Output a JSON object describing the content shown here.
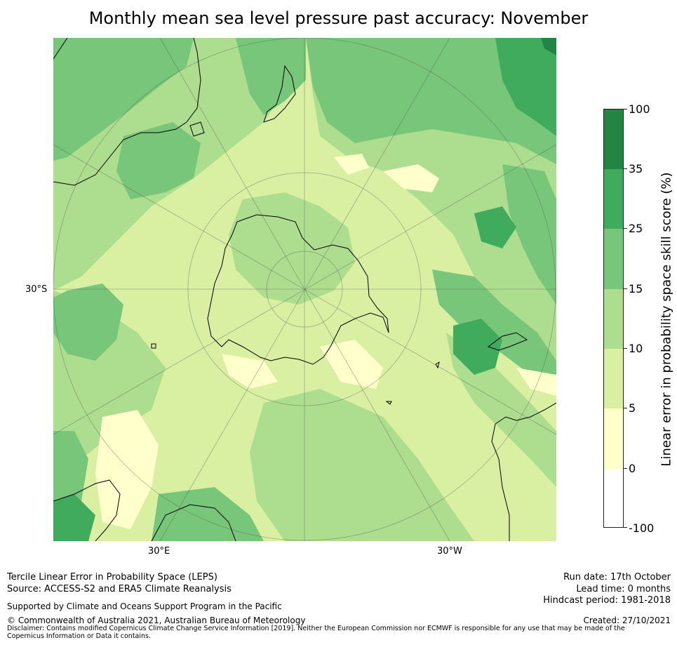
{
  "title": "Monthly mean sea level pressure past accuracy: November",
  "map": {
    "projection": "South polar stereographic",
    "lat_label_left": "30°S",
    "lon_label_bottom_left": "30°E",
    "lon_label_bottom_right": "30°W"
  },
  "colorbar": {
    "label": "Linear error in probability space skill score (%)",
    "ticks": [
      "100",
      "35",
      "25",
      "15",
      "10",
      "5",
      "0",
      "-100"
    ],
    "bins": [
      {
        "range": "35 to 100",
        "color": "#238443"
      },
      {
        "range": "25 to 35",
        "color": "#41ab5d"
      },
      {
        "range": "15 to 25",
        "color": "#78c679"
      },
      {
        "range": "10 to 15",
        "color": "#addd8e"
      },
      {
        "range": "5 to 10",
        "color": "#d9f0a3"
      },
      {
        "range": "0 to 5",
        "color": "#ffffcc"
      },
      {
        "range": "-100 to 0",
        "color": "#ffffff"
      }
    ]
  },
  "footer": {
    "method": "Tercile Linear Error in Probability Space (LEPS)",
    "source": "Source: ACCESS-S2 and ERA5 Climate Reanalysis",
    "support": "Supported by Climate and Oceans Support Program in the Pacific",
    "copyright": "© Commonwealth of Australia 2021, Australian Bureau of Meteorology",
    "disclaimer": "Disclaimer: Contains modified Copernicus Climate Change Service Information [2019]. Neither the European Commission nor ECMWF is responsible for any use that may be made of the Copernicus Information or Data it contains.",
    "run_date": "Run date: 17th October",
    "lead_time": "Lead time: 0 months",
    "hindcast": "Hindcast period: 1981-2018",
    "created": "Created: 27/10/2021"
  }
}
